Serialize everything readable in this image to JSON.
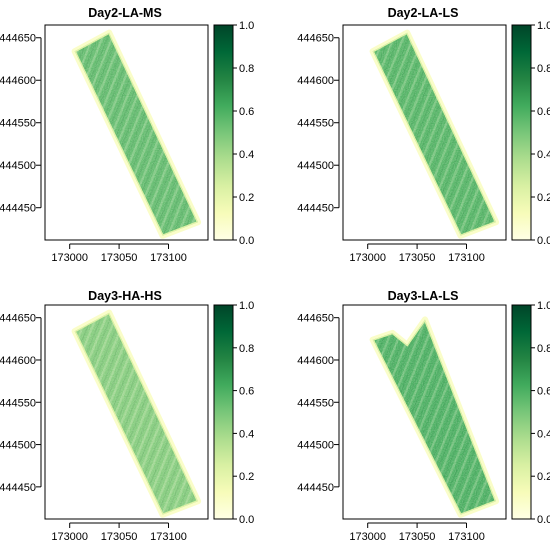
{
  "figure": {
    "panels": [
      {
        "title": "Day2-LA-MS",
        "x_ticks": [
          "173000",
          "173050",
          "173100"
        ],
        "x_tick_values": [
          173000,
          173050,
          173100
        ],
        "y_ticks": [
          "444650",
          "444600",
          "444550",
          "444500",
          "444450"
        ],
        "y_tick_values": [
          444650,
          444600,
          444550,
          444500,
          444450
        ],
        "legend_ticks": [
          "1.0",
          "0.8",
          "0.6",
          "0.4",
          "0.2",
          "0.0"
        ],
        "legend_tick_values": [
          1.0,
          0.8,
          0.6,
          0.4,
          0.2,
          0.0
        ],
        "x_range": [
          172975,
          173140
        ],
        "y_range": [
          444412,
          444665
        ],
        "field_polygon": [
          [
            173005,
            444634
          ],
          [
            173040,
            444656
          ],
          [
            173130,
            444433
          ],
          [
            173094,
            444417
          ]
        ],
        "field_mean": 0.55
      },
      {
        "title": "Day2-LA-LS",
        "x_ticks": [
          "173000",
          "173050",
          "173100"
        ],
        "x_tick_values": [
          173000,
          173050,
          173100
        ],
        "y_ticks": [
          "444650",
          "444600",
          "444550",
          "444500",
          "444450"
        ],
        "y_tick_values": [
          444650,
          444600,
          444550,
          444500,
          444450
        ],
        "legend_ticks": [
          "1.0",
          "0.8",
          "0.6",
          "0.4",
          "0.2",
          "0.0"
        ],
        "legend_tick_values": [
          1.0,
          0.8,
          0.6,
          0.4,
          0.2,
          0.0
        ],
        "x_range": [
          172975,
          173140
        ],
        "y_range": [
          444412,
          444665
        ],
        "field_polygon": [
          [
            173005,
            444634
          ],
          [
            173040,
            444656
          ],
          [
            173130,
            444433
          ],
          [
            173094,
            444417
          ]
        ],
        "field_mean": 0.58
      },
      {
        "title": "Day3-HA-HS",
        "x_ticks": [
          "173000",
          "173050",
          "173100"
        ],
        "x_tick_values": [
          173000,
          173050,
          173100
        ],
        "y_ticks": [
          "444650",
          "444600",
          "444550",
          "444500",
          "444450"
        ],
        "y_tick_values": [
          444650,
          444600,
          444550,
          444500,
          444450
        ],
        "legend_ticks": [
          "1.0",
          "0.8",
          "0.6",
          "0.4",
          "0.2",
          "0.0"
        ],
        "legend_tick_values": [
          1.0,
          0.8,
          0.6,
          0.4,
          0.2,
          0.0
        ],
        "x_range": [
          172975,
          173140
        ],
        "y_range": [
          444412,
          444665
        ],
        "field_polygon": [
          [
            173005,
            444634
          ],
          [
            173040,
            444656
          ],
          [
            173130,
            444433
          ],
          [
            173094,
            444417
          ]
        ],
        "field_mean": 0.47
      },
      {
        "title": "Day3-LA-LS",
        "x_ticks": [
          "173000",
          "173050",
          "173100"
        ],
        "x_tick_values": [
          173000,
          173050,
          173100
        ],
        "y_ticks": [
          "444650",
          "444600",
          "444550",
          "444500",
          "444450"
        ],
        "y_tick_values": [
          444650,
          444600,
          444550,
          444500,
          444450
        ],
        "legend_ticks": [
          "1.0",
          "0.8",
          "0.6",
          "0.4",
          "0.2",
          "0.0"
        ],
        "legend_tick_values": [
          1.0,
          0.8,
          0.6,
          0.4,
          0.2,
          0.0
        ],
        "x_range": [
          172975,
          173140
        ],
        "y_range": [
          444412,
          444665
        ],
        "field_polygon": [
          [
            173005,
            444624
          ],
          [
            173025,
            444632
          ],
          [
            173040,
            444618
          ],
          [
            173058,
            444648
          ],
          [
            173130,
            444433
          ],
          [
            173094,
            444417
          ]
        ],
        "field_mean": 0.6
      }
    ],
    "colorbar": {
      "palette": "YlGn",
      "colors": [
        "#ffffe5",
        "#f7fcb9",
        "#d9f0a3",
        "#addd8e",
        "#78c679",
        "#41ab5d",
        "#238443",
        "#006837",
        "#004529"
      ]
    }
  }
}
